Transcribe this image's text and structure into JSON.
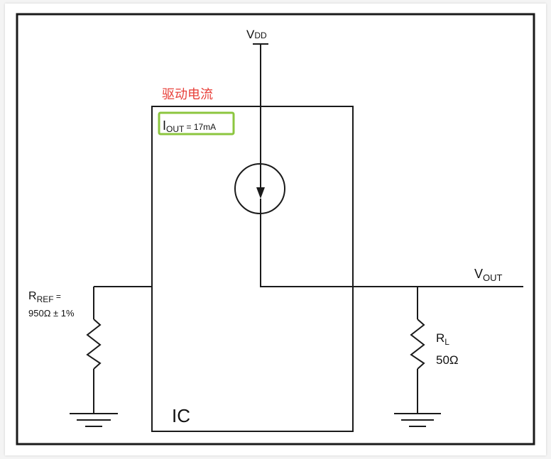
{
  "diagram": {
    "supply": {
      "main": "V",
      "sub": "DD"
    },
    "drive_current_label": "驱动电流",
    "output_current": {
      "main": "I",
      "sub": "OUT",
      "rest": " = 17mA"
    },
    "output_voltage": {
      "main": "V",
      "sub": "OUT"
    },
    "reference_resistor": {
      "main": "R",
      "sub": "REF",
      "rest": " =",
      "value": "950Ω ± 1%"
    },
    "load_resistor": {
      "main": "R",
      "sub": "L",
      "value": "50Ω"
    },
    "chip_label": "IC",
    "colors": {
      "annotation_text": "#e8403a",
      "highlight_box": "#8cc63f",
      "wire": "#1a1a1a"
    }
  }
}
